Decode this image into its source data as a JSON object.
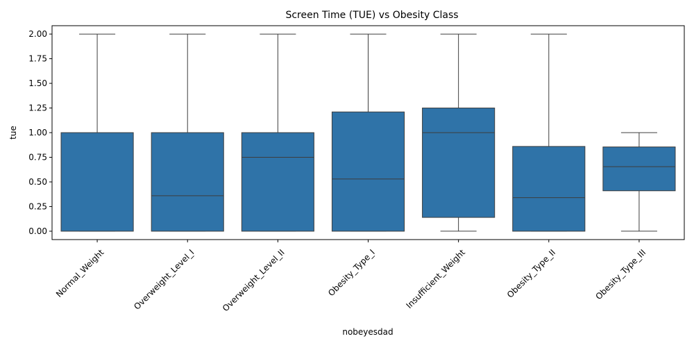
{
  "chart_data": {
    "type": "box",
    "title": "Screen Time (TUE) vs Obesity Class",
    "xlabel": "nobeyesdad",
    "ylabel": "tue",
    "ylim": [
      -0.085,
      2.085
    ],
    "yticks": [
      "0.00",
      "0.25",
      "0.50",
      "0.75",
      "1.00",
      "1.25",
      "1.50",
      "1.75",
      "2.00"
    ],
    "box_color": "#2f73a8",
    "line_color": "#3d3d3d",
    "categories": [
      "Normal_Weight",
      "Overweight_Level_I",
      "Overweight_Level_II",
      "Obesity_Type_I",
      "Insufficient_Weight",
      "Obesity_Type_II",
      "Obesity_Type_III"
    ],
    "boxes": [
      {
        "whislo": 0.0,
        "q1": 0.0,
        "med": 1.0,
        "q3": 1.0,
        "whishi": 2.0
      },
      {
        "whislo": 0.0,
        "q1": 0.0,
        "med": 0.36,
        "q3": 1.0,
        "whishi": 2.0
      },
      {
        "whislo": 0.0,
        "q1": 0.0,
        "med": 0.75,
        "q3": 1.0,
        "whishi": 2.0
      },
      {
        "whislo": 0.0,
        "q1": 0.0,
        "med": 0.53,
        "q3": 1.21,
        "whishi": 2.0
      },
      {
        "whislo": 0.0,
        "q1": 0.14,
        "med": 1.0,
        "q3": 1.25,
        "whishi": 2.0
      },
      {
        "whislo": 0.0,
        "q1": 0.0,
        "med": 0.34,
        "q3": 0.86,
        "whishi": 2.0
      },
      {
        "whislo": 0.0,
        "q1": 0.41,
        "med": 0.655,
        "q3": 0.855,
        "whishi": 1.0
      }
    ]
  }
}
